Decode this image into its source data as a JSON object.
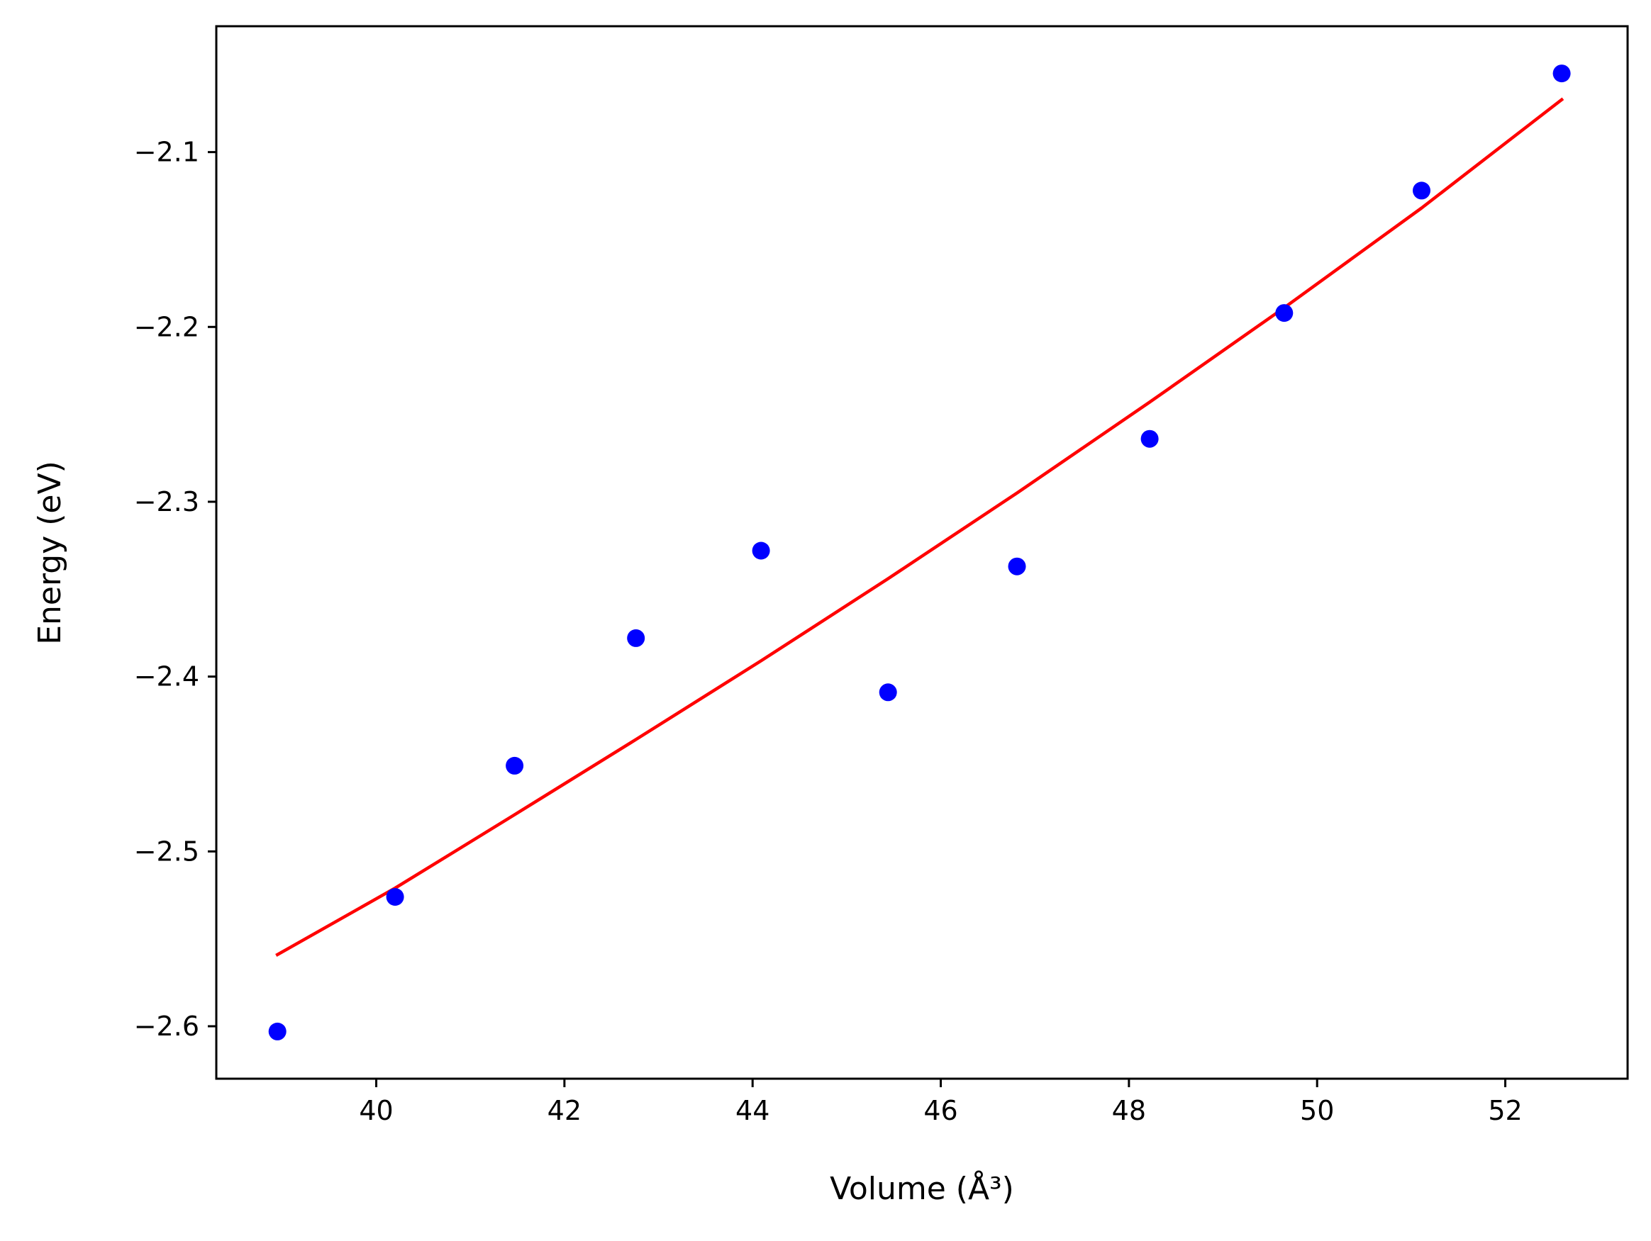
{
  "chart_data": {
    "type": "scatter",
    "xlabel": "Volume (Å³)",
    "ylabel": "Energy (eV)",
    "xlim": [
      38.3,
      53.3
    ],
    "ylim": [
      -2.63,
      -2.028
    ],
    "x_ticks": [
      40,
      42,
      44,
      46,
      48,
      50,
      52
    ],
    "y_ticks": [
      -2.6,
      -2.5,
      -2.4,
      -2.3,
      -2.2,
      -2.1
    ],
    "x_tick_labels": [
      "40",
      "42",
      "44",
      "46",
      "48",
      "50",
      "52"
    ],
    "y_tick_labels": [
      "−2.6",
      "−2.5",
      "−2.4",
      "−2.3",
      "−2.2",
      "−2.1"
    ],
    "grid": false,
    "series": [
      {
        "kind": "scatter",
        "color": "#0000ff",
        "x": [
          38.95,
          40.2,
          41.47,
          42.76,
          44.09,
          45.44,
          46.81,
          48.22,
          49.65,
          51.11,
          52.6
        ],
        "y": [
          -2.603,
          -2.526,
          -2.451,
          -2.378,
          -2.328,
          -2.409,
          -2.337,
          -2.264,
          -2.192,
          -2.122,
          -2.055
        ]
      },
      {
        "kind": "line",
        "color": "#ff0000",
        "x": [
          38.95,
          40.2,
          41.47,
          42.76,
          44.09,
          45.44,
          46.81,
          48.22,
          49.65,
          51.11,
          52.6
        ],
        "y": [
          -2.559,
          -2.521,
          -2.479,
          -2.436,
          -2.391,
          -2.344,
          -2.295,
          -2.243,
          -2.189,
          -2.132,
          -2.07
        ]
      }
    ]
  }
}
